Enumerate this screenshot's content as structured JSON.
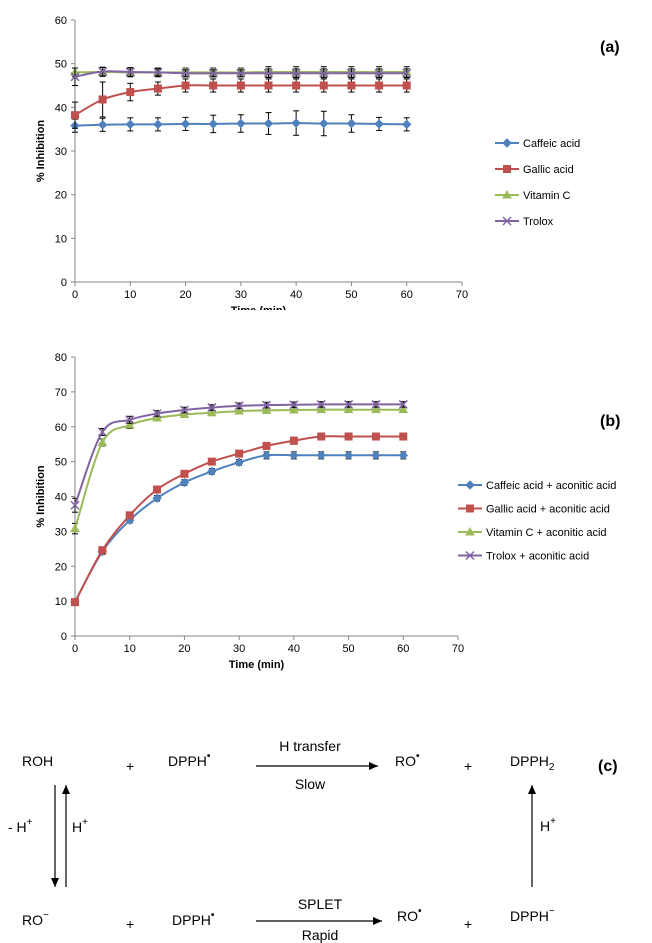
{
  "chart_data": [
    {
      "type": "line",
      "panel_label": "(a)",
      "xlabel": "Time (min)",
      "ylabel": "% Inhibition",
      "xlim": [
        0,
        70
      ],
      "ylim": [
        0,
        60
      ],
      "x_ticks": [
        0,
        10,
        20,
        30,
        40,
        50,
        60,
        70
      ],
      "y_ticks": [
        0,
        10,
        20,
        30,
        40,
        50,
        60
      ],
      "legend_position": "right",
      "grid": false,
      "x": [
        0,
        5,
        10,
        15,
        20,
        25,
        30,
        35,
        40,
        45,
        50,
        55,
        60
      ],
      "series": [
        {
          "name": "Caffeic acid",
          "color": "#4f81bd",
          "marker": "diamond",
          "values": [
            35.8,
            36.0,
            36.1,
            36.1,
            36.2,
            36.2,
            36.3,
            36.3,
            36.4,
            36.3,
            36.3,
            36.2,
            36.1
          ],
          "errors": [
            1.5,
            1.5,
            1.5,
            1.5,
            1.5,
            2.0,
            2.0,
            2.5,
            2.8,
            2.8,
            2.0,
            1.5,
            1.5
          ]
        },
        {
          "name": "Gallic acid",
          "color": "#c0504d",
          "marker": "square",
          "values": [
            38.2,
            41.8,
            43.5,
            44.3,
            45.0,
            45.0,
            45.0,
            45.0,
            45.0,
            45.0,
            45.0,
            45.0,
            45.0
          ],
          "errors": [
            3.0,
            4.0,
            2.0,
            1.5,
            1.5,
            1.5,
            1.5,
            1.5,
            1.5,
            1.5,
            1.5,
            1.5,
            1.5
          ]
        },
        {
          "name": "Vitamin C",
          "color": "#9bbb59",
          "marker": "triangle",
          "values": [
            48.0,
            48.1,
            48.0,
            48.0,
            48.0,
            48.0,
            48.0,
            48.1,
            48.1,
            48.1,
            48.1,
            48.1,
            48.1
          ],
          "errors": [
            1.0,
            1.0,
            1.0,
            1.0,
            1.0,
            1.0,
            1.0,
            1.2,
            1.2,
            1.2,
            1.2,
            1.2,
            1.2
          ]
        },
        {
          "name": "Trolox",
          "color": "#8064a2",
          "marker": "x",
          "values": [
            47.0,
            48.2,
            48.1,
            48.0,
            47.8,
            47.8,
            47.8,
            47.8,
            47.8,
            47.8,
            47.8,
            47.8,
            47.8
          ],
          "errors": [
            2.0,
            1.0,
            1.0,
            0.8,
            0.8,
            0.8,
            0.8,
            1.0,
            1.0,
            1.0,
            1.0,
            1.0,
            1.0
          ]
        }
      ]
    },
    {
      "type": "line",
      "panel_label": "(b)",
      "xlabel": "Time (min)",
      "ylabel": "% Inhibition",
      "xlim": [
        0,
        70
      ],
      "ylim": [
        0,
        80
      ],
      "x_ticks": [
        0,
        10,
        20,
        30,
        40,
        50,
        60,
        70
      ],
      "y_ticks": [
        0,
        10,
        20,
        30,
        40,
        50,
        60,
        70,
        80
      ],
      "legend_position": "right",
      "grid": false,
      "x": [
        0,
        5,
        10,
        15,
        20,
        25,
        30,
        35,
        40,
        45,
        50,
        55,
        60
      ],
      "series": [
        {
          "name": "Caffeic acid + aconitic acid",
          "color": "#4f81bd",
          "marker": "diamond",
          "values": [
            9.8,
            24.2,
            33.2,
            39.5,
            44.0,
            47.2,
            49.8,
            51.8,
            51.8,
            51.8,
            51.8,
            51.8,
            51.8
          ],
          "errors": [
            0.8,
            0.8,
            0.8,
            0.8,
            0.8,
            0.8,
            0.8,
            1.0,
            1.0,
            1.0,
            1.0,
            1.0,
            1.0
          ]
        },
        {
          "name": "Gallic acid + aconitic acid",
          "color": "#c0504d",
          "marker": "square",
          "values": [
            9.7,
            24.6,
            34.6,
            42.0,
            46.5,
            50.0,
            52.3,
            54.5,
            56.0,
            57.2,
            57.2,
            57.2,
            57.2
          ],
          "errors": [
            0.8,
            0.8,
            0.8,
            0.8,
            0.8,
            0.8,
            0.8,
            1.0,
            1.0,
            1.0,
            1.0,
            1.0,
            1.0
          ]
        },
        {
          "name": "Vitamin C + aconitic acid",
          "color": "#9bbb59",
          "marker": "triangle",
          "values": [
            30.8,
            55.5,
            60.5,
            62.5,
            63.5,
            64.0,
            64.5,
            64.7,
            64.8,
            64.9,
            64.9,
            64.9,
            64.9
          ],
          "errors": [
            1.5,
            1.0,
            1.0,
            0.8,
            0.8,
            0.8,
            0.8,
            0.8,
            0.8,
            0.8,
            0.8,
            0.8,
            0.8
          ]
        },
        {
          "name": "Trolox + aconitic acid",
          "color": "#8064a2",
          "marker": "x",
          "values": [
            37.5,
            58.5,
            62.0,
            63.8,
            64.8,
            65.5,
            66.0,
            66.2,
            66.3,
            66.4,
            66.4,
            66.4,
            66.4
          ],
          "errors": [
            2.0,
            1.0,
            1.0,
            0.8,
            0.8,
            0.8,
            0.8,
            0.8,
            0.8,
            0.8,
            0.8,
            0.8,
            0.8
          ]
        }
      ]
    }
  ],
  "scheme": {
    "panel_label": "(c)",
    "row1": {
      "reactant1": "ROH",
      "plus1": "+",
      "reactant2": "DPPH",
      "radical_dot": "•",
      "arrow_top": "H transfer",
      "arrow_bottom": "Slow",
      "product1": "RO",
      "plus2": "+",
      "product2": "DPPH",
      "product2_sub": "2"
    },
    "row2": {
      "reactant1": "RO",
      "reactant1_sup": "−",
      "plus1": "+",
      "reactant2": "DPPH",
      "arrow_top": "SPLET",
      "arrow_bottom": "Rapid",
      "product1": "RO",
      "plus2": "+",
      "product2": "DPPH",
      "product2_sup": "−"
    },
    "left_down_label": "- H",
    "left_up_label": "H",
    "plus_sup": "+",
    "right_up_label": "H",
    "right_up_sup": "+"
  }
}
